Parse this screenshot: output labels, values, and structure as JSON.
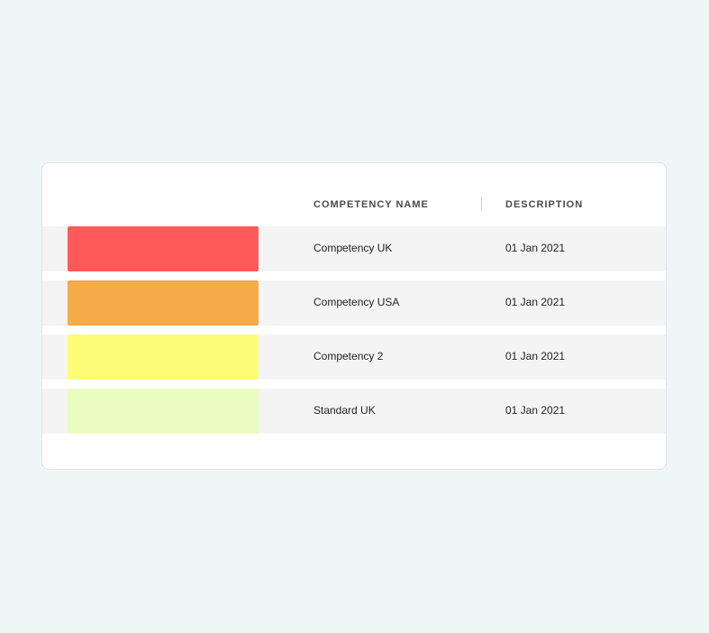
{
  "table": {
    "columns": {
      "name": "COMPETENCY NAME",
      "description": "DESCRIPTION"
    },
    "rows": [
      {
        "color": "#ff5a5a",
        "name": "Competency UK",
        "description": "01 Jan 2021"
      },
      {
        "color": "#f5ab47",
        "name": "Competency USA",
        "description": "01 Jan 2021"
      },
      {
        "color": "#fdfd75",
        "name": "Competency 2",
        "description": "01 Jan 2021"
      },
      {
        "color": "#ebfcc0",
        "name": "Standard UK",
        "description": "01 Jan 2021"
      }
    ]
  }
}
